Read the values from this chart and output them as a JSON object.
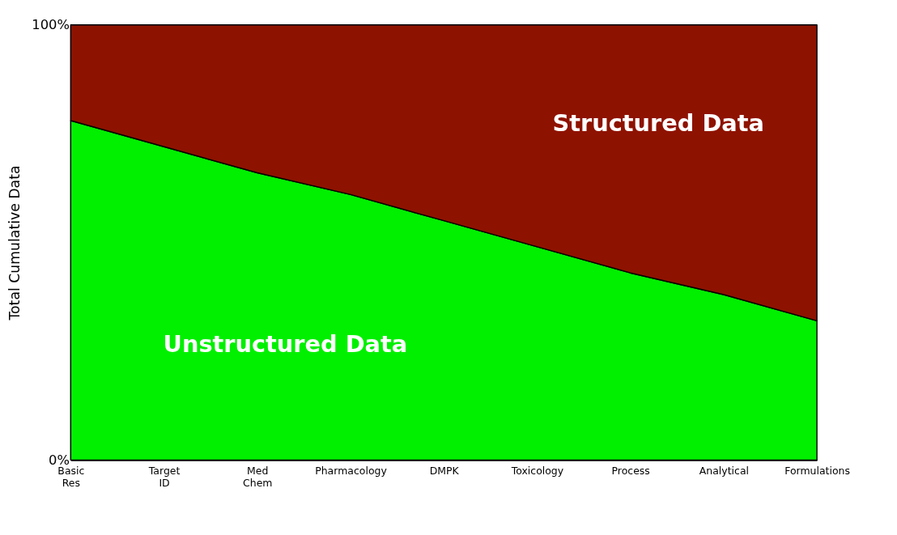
{
  "chart_data": {
    "type": "area",
    "stacked": true,
    "ylabel": "Total Cumulative Data",
    "categories": [
      "Basic Res",
      "Target ID",
      "Med Chem",
      "Pharmacology",
      "DMPK",
      "Toxicology",
      "Process",
      "Analytical",
      "Formulations"
    ],
    "series": [
      {
        "name": "Unstructured Data",
        "color": "#00f000",
        "values": [
          78,
          72,
          66,
          61,
          55,
          49,
          43,
          38,
          32
        ]
      },
      {
        "name": "Structured Data",
        "color": "#8e1200",
        "values": [
          22,
          28,
          34,
          39,
          45,
          51,
          57,
          62,
          68
        ]
      }
    ],
    "ylim": [
      0,
      100
    ],
    "yticks": [
      {
        "value": 0,
        "label": "0%"
      },
      {
        "value": 100,
        "label": "100%"
      }
    ],
    "legend": false
  }
}
